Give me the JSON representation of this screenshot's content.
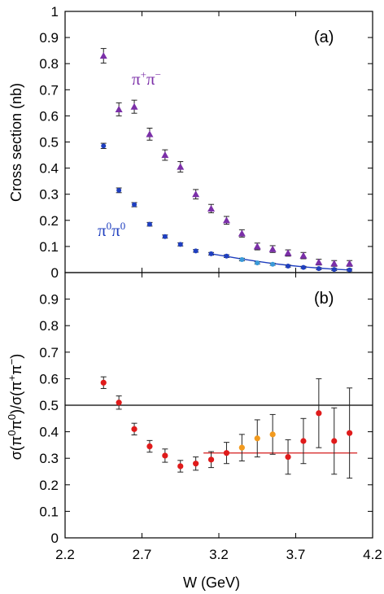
{
  "chart_data": [
    {
      "type": "scatter",
      "panel_label": "(a)",
      "ylabel": "Cross section (nb)",
      "ylim": [
        0,
        1
      ],
      "yticks": [
        "0",
        "0.1",
        "0.2",
        "0.3",
        "0.4",
        "0.5",
        "0.6",
        "0.7",
        "0.8",
        "0.9",
        "1"
      ],
      "xlim": [
        2.2,
        4.2
      ],
      "series": [
        {
          "name": "π+π−",
          "name_base": "π",
          "name_sup1": "+",
          "name_base2": "π",
          "name_sup2": "−",
          "color": "#7b2fa8",
          "marker": "triangle",
          "x": [
            2.45,
            2.55,
            2.65,
            2.75,
            2.85,
            2.95,
            3.05,
            3.15,
            3.25,
            3.35,
            3.45,
            3.55,
            3.65,
            3.75,
            3.85,
            3.95,
            4.05
          ],
          "y": [
            0.83,
            0.625,
            0.635,
            0.53,
            0.45,
            0.405,
            0.3,
            0.245,
            0.2,
            0.15,
            0.1,
            0.09,
            0.075,
            0.065,
            0.04,
            0.035,
            0.035
          ],
          "err": [
            0.028,
            0.025,
            0.025,
            0.023,
            0.02,
            0.02,
            0.018,
            0.016,
            0.015,
            0.014,
            0.013,
            0.013,
            0.012,
            0.012,
            0.011,
            0.011,
            0.011
          ]
        },
        {
          "name": "π0π0",
          "name_base": "π",
          "name_sup1": "0",
          "name_base2": "π",
          "name_sup2": "0",
          "color": "#1f3fbf",
          "marker": "circle",
          "x": [
            2.45,
            2.55,
            2.65,
            2.75,
            2.85,
            2.95,
            3.05,
            3.15,
            3.25,
            3.35,
            3.45,
            3.55,
            3.65,
            3.75,
            3.85,
            3.95,
            4.05
          ],
          "y": [
            0.485,
            0.315,
            0.26,
            0.185,
            0.138,
            0.108,
            0.083,
            0.072,
            0.063,
            0.05,
            0.037,
            0.032,
            0.025,
            0.02,
            0.015,
            0.012,
            0.01
          ],
          "err": [
            0.01,
            0.009,
            0.008,
            0.007,
            0.006,
            0.006,
            0.005,
            0.005,
            0.005,
            0.005,
            0.004,
            0.004,
            0.004,
            0.004,
            0.004,
            0.004,
            0.004
          ],
          "highlight_color": "#3a9ad9",
          "highlight_indices": [
            9,
            10,
            11
          ]
        }
      ],
      "fit_curve": {
        "color": "#1f3fbf",
        "x": [
          3.15,
          3.25,
          3.35,
          3.45,
          3.55,
          3.65,
          3.75,
          3.85,
          3.95,
          4.05
        ],
        "y": [
          0.072,
          0.062,
          0.052,
          0.043,
          0.035,
          0.028,
          0.022,
          0.017,
          0.013,
          0.01
        ]
      }
    },
    {
      "type": "scatter",
      "panel_label": "(b)",
      "ylabel": "σ(π0π0)/σ(π+π−)",
      "ylabel_parts": [
        "σ(π",
        "0",
        "π",
        "0",
        ")/σ(π",
        "+",
        "π",
        "−",
        ")"
      ],
      "xlabel": "W (GeV)",
      "ylim": [
        0,
        1
      ],
      "yticks": [
        "0",
        "0.1",
        "0.2",
        "0.3",
        "0.4",
        "0.5",
        "0.6",
        "0.7",
        "0.8",
        "0.9"
      ],
      "xlim": [
        2.2,
        4.2
      ],
      "xticks": [
        "2.2",
        "2.7",
        "3.2",
        "3.7",
        "4.2"
      ],
      "reference_line": {
        "y": 0.5,
        "color": "#000000"
      },
      "fit_line": {
        "x": [
          3.1,
          4.1
        ],
        "y": 0.32,
        "color": "#d93030"
      },
      "series": [
        {
          "color": "#e01b1b",
          "marker": "circle",
          "x": [
            2.45,
            2.55,
            2.65,
            2.75,
            2.85,
            2.95,
            3.05,
            3.15,
            3.25,
            3.35,
            3.45,
            3.55,
            3.65,
            3.75,
            3.85,
            3.95,
            4.05
          ],
          "y": [
            0.585,
            0.51,
            0.41,
            0.345,
            0.31,
            0.27,
            0.28,
            0.295,
            0.32,
            0.34,
            0.375,
            0.39,
            0.305,
            0.365,
            0.47,
            0.365,
            0.395
          ],
          "err": [
            0.022,
            0.025,
            0.022,
            0.022,
            0.025,
            0.022,
            0.025,
            0.03,
            0.04,
            0.05,
            0.07,
            0.075,
            0.065,
            0.085,
            0.13,
            0.125,
            0.17
          ],
          "highlight_color": "#f29a1e",
          "highlight_indices": [
            9,
            10,
            11
          ]
        }
      ]
    }
  ]
}
